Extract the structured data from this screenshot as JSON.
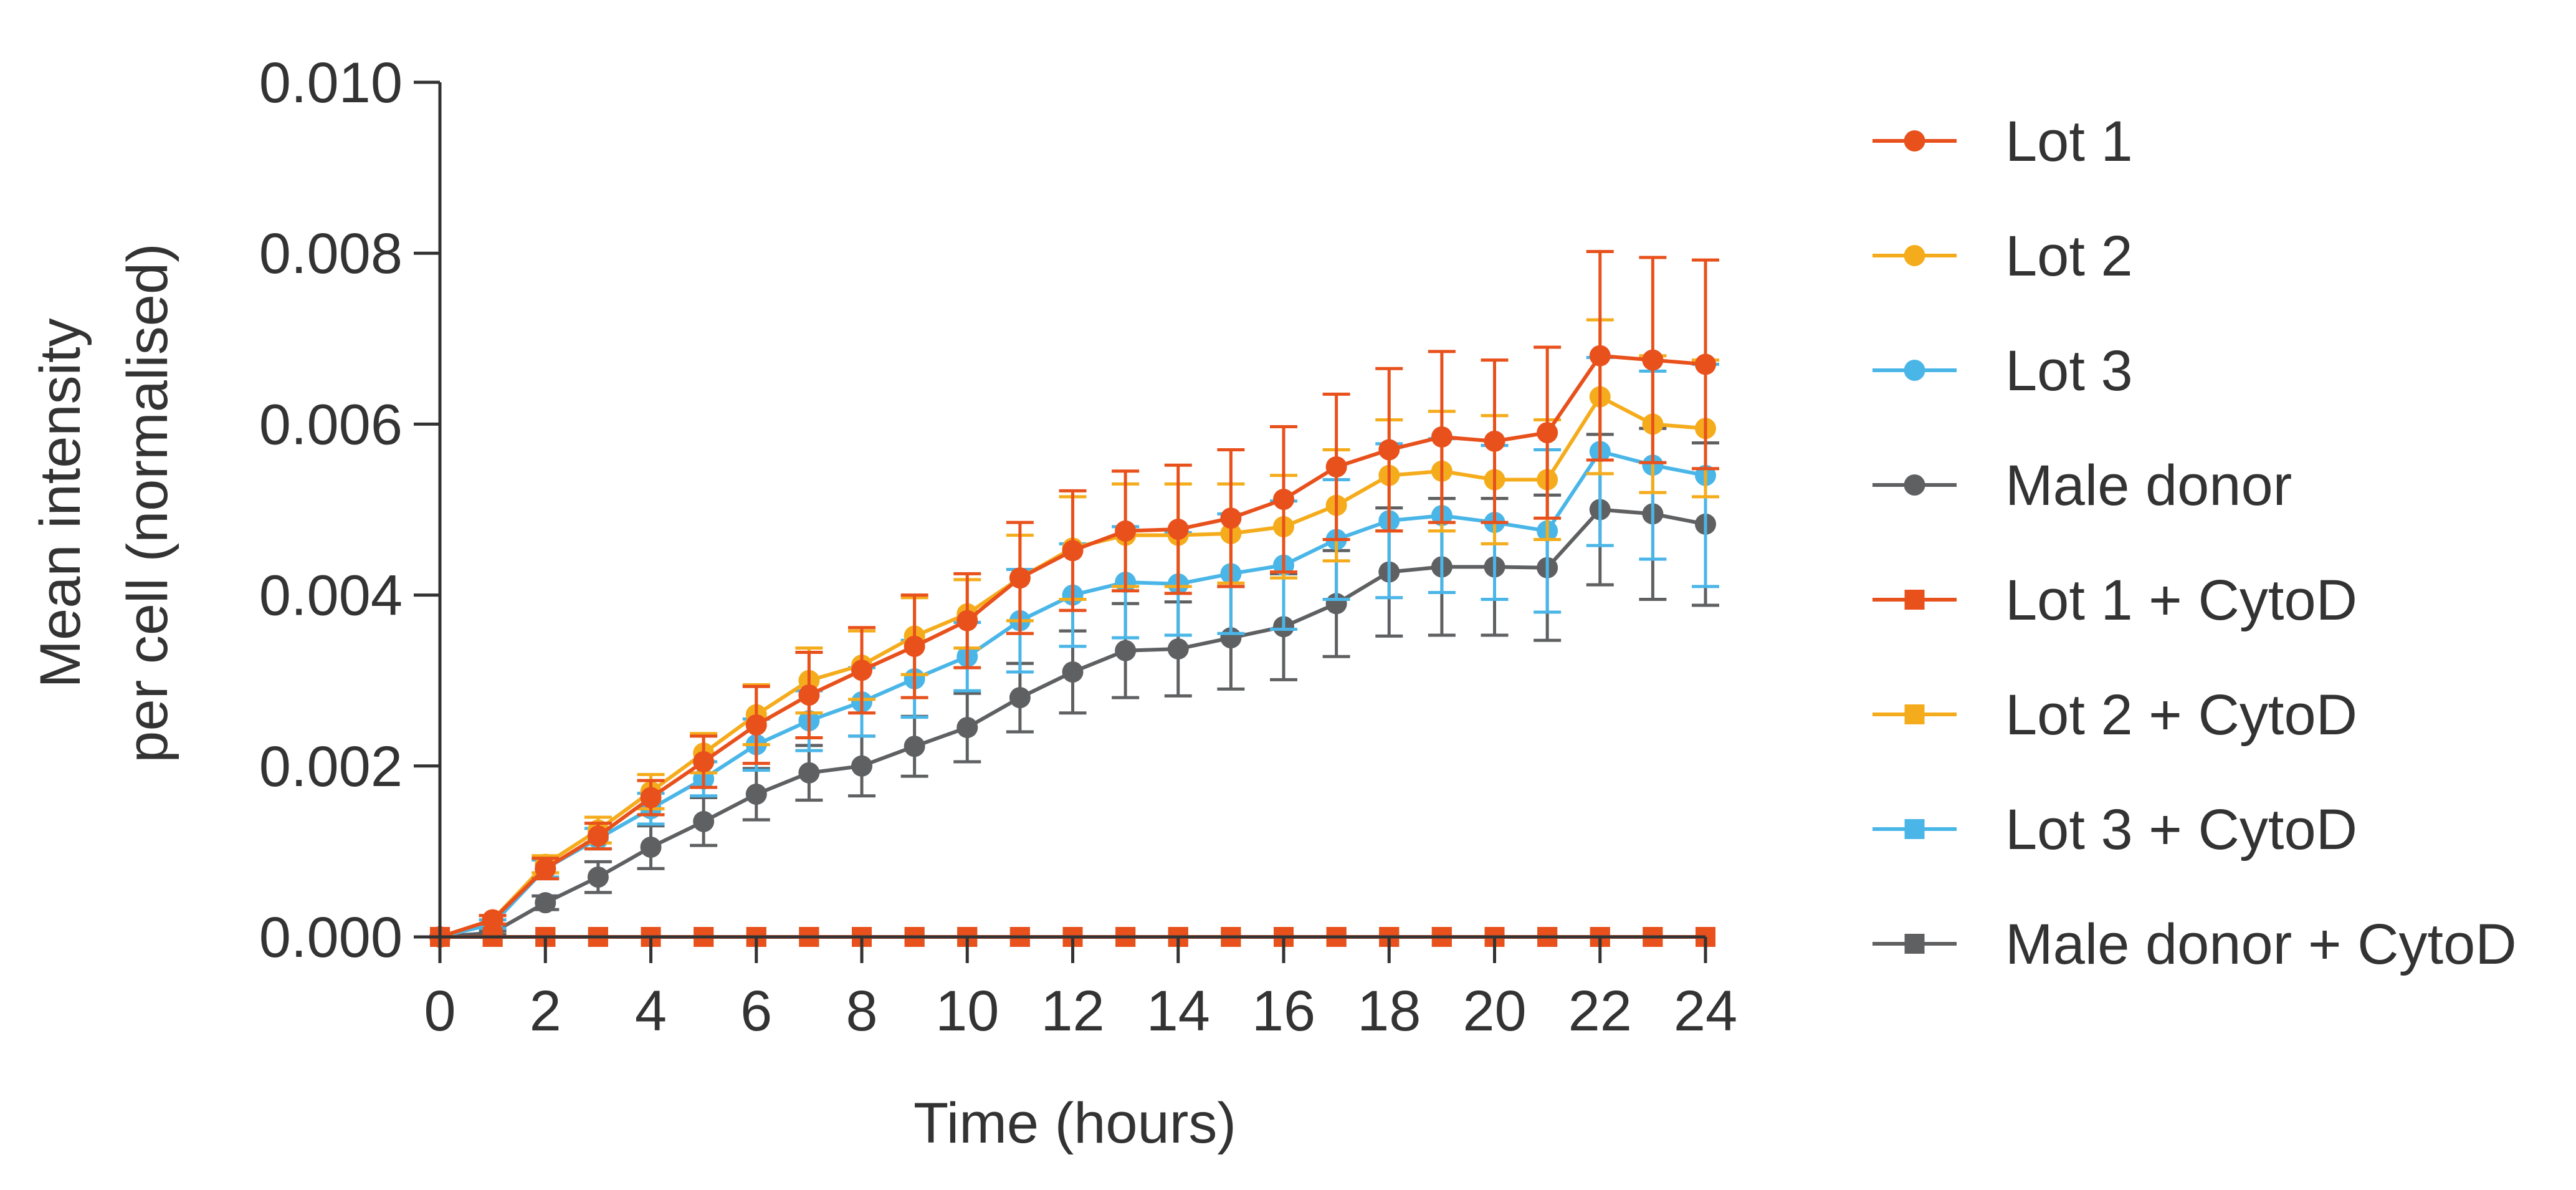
{
  "chart_data": {
    "type": "line",
    "xlabel": "Time (hours)",
    "ylabel_lines": [
      "Mean intensity",
      "per cell (normalised)"
    ],
    "xlim": [
      0,
      24
    ],
    "ylim": [
      0,
      0.01
    ],
    "x_ticks": [
      0,
      2,
      4,
      6,
      8,
      10,
      12,
      14,
      16,
      18,
      20,
      22,
      24
    ],
    "y_ticks": [
      "0.000",
      "0.002",
      "0.004",
      "0.006",
      "0.008",
      "0.010"
    ],
    "grid": false,
    "legend_position": "right",
    "x": [
      0,
      1,
      2,
      3,
      4,
      5,
      6,
      7,
      8,
      9,
      10,
      11,
      12,
      13,
      14,
      15,
      16,
      17,
      18,
      19,
      20,
      21,
      22,
      23,
      24
    ],
    "series": [
      {
        "name": "Lot 1",
        "color": "#e8501c",
        "marker": "circle",
        "values": [
          0,
          0.0002,
          0.0008,
          0.00118,
          0.00163,
          0.00205,
          0.00248,
          0.00283,
          0.00312,
          0.0034,
          0.0037,
          0.0042,
          0.00452,
          0.00475,
          0.00477,
          0.0049,
          0.00512,
          0.0055,
          0.0057,
          0.00585,
          0.0058,
          0.0059,
          0.0068,
          0.00675,
          0.0067
        ],
        "errors": [
          0,
          5e-05,
          0.00012,
          0.00015,
          0.0002,
          0.0003,
          0.00045,
          0.0005,
          0.0005,
          0.0006,
          0.00055,
          0.00065,
          0.0007,
          0.0007,
          0.00075,
          0.0008,
          0.00085,
          0.00085,
          0.00095,
          0.001,
          0.00095,
          0.001,
          0.00122,
          0.0012,
          0.00122
        ]
      },
      {
        "name": "Lot 2",
        "color": "#f5ac1c",
        "marker": "circle",
        "values": [
          0,
          0.0002,
          0.00085,
          0.00125,
          0.0017,
          0.00215,
          0.0026,
          0.003,
          0.00318,
          0.00352,
          0.00378,
          0.0042,
          0.00455,
          0.0047,
          0.0047,
          0.00472,
          0.0048,
          0.00505,
          0.0054,
          0.00545,
          0.00535,
          0.00535,
          0.00632,
          0.006,
          0.00595
        ],
        "errors": [
          0,
          5e-05,
          0.0001,
          0.00015,
          0.0002,
          0.00023,
          0.00035,
          0.00038,
          0.0004,
          0.00045,
          0.0004,
          0.0005,
          0.0006,
          0.0006,
          0.0006,
          0.00058,
          0.0006,
          0.00065,
          0.00065,
          0.0007,
          0.00075,
          0.0007,
          0.0009,
          0.0008,
          0.0008
        ]
      },
      {
        "name": "Lot 3",
        "color": "#4ab6e8",
        "marker": "circle",
        "values": [
          0,
          0.00015,
          0.0008,
          0.00115,
          0.0015,
          0.00185,
          0.00225,
          0.00253,
          0.00275,
          0.00302,
          0.00328,
          0.0037,
          0.004,
          0.00415,
          0.00413,
          0.00425,
          0.00435,
          0.00465,
          0.00487,
          0.00493,
          0.00485,
          0.00475,
          0.00568,
          0.00552,
          0.0054
        ],
        "errors": [
          0,
          5e-05,
          0.0001,
          0.00012,
          0.00018,
          0.0002,
          0.0003,
          0.00035,
          0.0004,
          0.00045,
          0.0004,
          0.0006,
          0.0006,
          0.00065,
          0.0006,
          0.0007,
          0.00075,
          0.0007,
          0.0009,
          0.0009,
          0.0009,
          0.00095,
          0.0011,
          0.0011,
          0.0013
        ]
      },
      {
        "name": "Male donor",
        "color": "#5f6062",
        "marker": "circle",
        "values": [
          0,
          5e-05,
          0.0004,
          0.0007,
          0.00105,
          0.00135,
          0.00167,
          0.00192,
          0.002,
          0.00223,
          0.00245,
          0.0028,
          0.0031,
          0.00335,
          0.00337,
          0.0035,
          0.00363,
          0.0039,
          0.00427,
          0.00433,
          0.00433,
          0.00432,
          0.005,
          0.00495,
          0.00483
        ],
        "errors": [
          0,
          2e-05,
          8e-05,
          0.00018,
          0.00025,
          0.00028,
          0.0003,
          0.00032,
          0.00035,
          0.00035,
          0.0004,
          0.0004,
          0.00048,
          0.00055,
          0.00055,
          0.0006,
          0.00062,
          0.00062,
          0.00075,
          0.0008,
          0.0008,
          0.00085,
          0.00088,
          0.001,
          0.00095
        ]
      },
      {
        "name": "Lot 1 + CytoD",
        "color": "#e8501c",
        "marker": "square",
        "values": [
          0,
          0,
          0,
          0,
          0,
          0,
          0,
          0,
          0,
          0,
          0,
          0,
          0,
          0,
          0,
          0,
          0,
          0,
          0,
          0,
          0,
          0,
          0,
          0,
          0
        ]
      },
      {
        "name": "Lot 2 + CytoD",
        "color": "#f5ac1c",
        "marker": "square",
        "values": [
          0,
          0,
          0,
          0,
          0,
          0,
          0,
          0,
          0,
          0,
          0,
          0,
          0,
          0,
          0,
          0,
          0,
          0,
          0,
          0,
          0,
          0,
          0,
          0,
          0
        ]
      },
      {
        "name": "Lot 3 + CytoD",
        "color": "#4ab6e8",
        "marker": "square",
        "values": [
          0,
          0,
          0,
          0,
          0,
          0,
          0,
          0,
          0,
          0,
          0,
          0,
          0,
          0,
          0,
          0,
          0,
          0,
          0,
          0,
          0,
          0,
          0,
          0,
          0
        ]
      },
      {
        "name": "Male donor + CytoD",
        "color": "#5f6062",
        "marker": "square",
        "values": [
          0,
          0,
          0,
          0,
          0,
          0,
          0,
          0,
          0,
          0,
          0,
          0,
          0,
          0,
          0,
          0,
          0,
          0,
          0,
          0,
          0,
          0,
          0,
          0,
          0
        ]
      }
    ],
    "axis_color": "#333333"
  }
}
